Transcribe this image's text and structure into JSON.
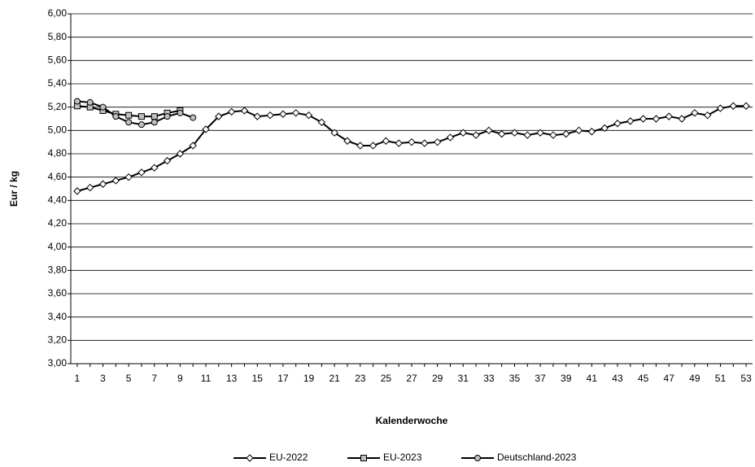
{
  "chart_data": {
    "type": "line",
    "y_label": "Eur / kg",
    "x_label": "Kalenderwoche",
    "x": [
      1,
      2,
      3,
      4,
      5,
      6,
      7,
      8,
      9,
      10,
      11,
      12,
      13,
      14,
      15,
      16,
      17,
      18,
      19,
      20,
      21,
      22,
      23,
      24,
      25,
      26,
      27,
      28,
      29,
      30,
      31,
      32,
      33,
      34,
      35,
      36,
      37,
      38,
      39,
      40,
      41,
      42,
      43,
      44,
      45,
      46,
      47,
      48,
      49,
      50,
      51,
      52,
      53
    ],
    "xlim": [
      0.5,
      53.5
    ],
    "xticks": [
      1,
      3,
      5,
      7,
      9,
      11,
      13,
      15,
      17,
      19,
      21,
      23,
      25,
      27,
      29,
      31,
      33,
      35,
      37,
      39,
      41,
      43,
      45,
      47,
      49,
      51,
      53
    ],
    "ylim": [
      3,
      6
    ],
    "yticks": [
      {
        "value": 3,
        "label": "3,00"
      },
      {
        "value": 3.2,
        "label": "3,20"
      },
      {
        "value": 3.4,
        "label": "3,40"
      },
      {
        "value": 3.6,
        "label": "3,60"
      },
      {
        "value": 3.8,
        "label": "3,80"
      },
      {
        "value": 4,
        "label": "4,00"
      },
      {
        "value": 4.2,
        "label": "4,20"
      },
      {
        "value": 4.4,
        "label": "4,40"
      },
      {
        "value": 4.6,
        "label": "4,60"
      },
      {
        "value": 4.8,
        "label": "4,80"
      },
      {
        "value": 5,
        "label": "5,00"
      },
      {
        "value": 5.2,
        "label": "5,20"
      },
      {
        "value": 5.4,
        "label": "5,40"
      },
      {
        "value": 5.6,
        "label": "5,60"
      },
      {
        "value": 5.8,
        "label": "5,80"
      },
      {
        "value": 6,
        "label": "6,00"
      }
    ],
    "grid": true,
    "legend": "bottom",
    "series": [
      {
        "name": "EU-2022",
        "color": "#000000",
        "marker": "diamond",
        "marker_fill": "#ffffff",
        "values": [
          4.48,
          4.51,
          4.54,
          4.57,
          4.6,
          4.64,
          4.68,
          4.74,
          4.8,
          4.87,
          5.01,
          5.12,
          5.16,
          5.17,
          5.12,
          5.13,
          5.14,
          5.15,
          5.13,
          5.07,
          4.98,
          4.91,
          4.87,
          4.87,
          4.91,
          4.89,
          4.9,
          4.89,
          4.9,
          4.94,
          4.98,
          4.96,
          5.0,
          4.97,
          4.98,
          4.96,
          4.98,
          4.96,
          4.97,
          5.0,
          4.99,
          5.02,
          5.06,
          5.08,
          5.1,
          5.1,
          5.12,
          5.1,
          5.15,
          5.13,
          5.19,
          5.21,
          5.21
        ]
      },
      {
        "name": "EU-2023",
        "color": "#000000",
        "marker": "square",
        "marker_fill": "#c0c0c0",
        "values": [
          5.21,
          5.2,
          5.17,
          5.14,
          5.13,
          5.12,
          5.12,
          5.15,
          5.17,
          null,
          null,
          null,
          null,
          null,
          null,
          null,
          null,
          null,
          null,
          null,
          null,
          null,
          null,
          null,
          null,
          null,
          null,
          null,
          null,
          null,
          null,
          null,
          null,
          null,
          null,
          null,
          null,
          null,
          null,
          null,
          null,
          null,
          null,
          null,
          null,
          null,
          null,
          null,
          null,
          null,
          null,
          null,
          null
        ]
      },
      {
        "name": "Deutschland-2023",
        "color": "#000000",
        "marker": "circle",
        "marker_fill": "#c0c0c0",
        "values": [
          5.25,
          5.24,
          5.2,
          5.12,
          5.07,
          5.05,
          5.07,
          5.12,
          5.15,
          5.11,
          null,
          null,
          null,
          null,
          null,
          null,
          null,
          null,
          null,
          null,
          null,
          null,
          null,
          null,
          null,
          null,
          null,
          null,
          null,
          null,
          null,
          null,
          null,
          null,
          null,
          null,
          null,
          null,
          null,
          null,
          null,
          null,
          null,
          null,
          null,
          null,
          null,
          null,
          null,
          null,
          null,
          null,
          null
        ]
      }
    ]
  }
}
